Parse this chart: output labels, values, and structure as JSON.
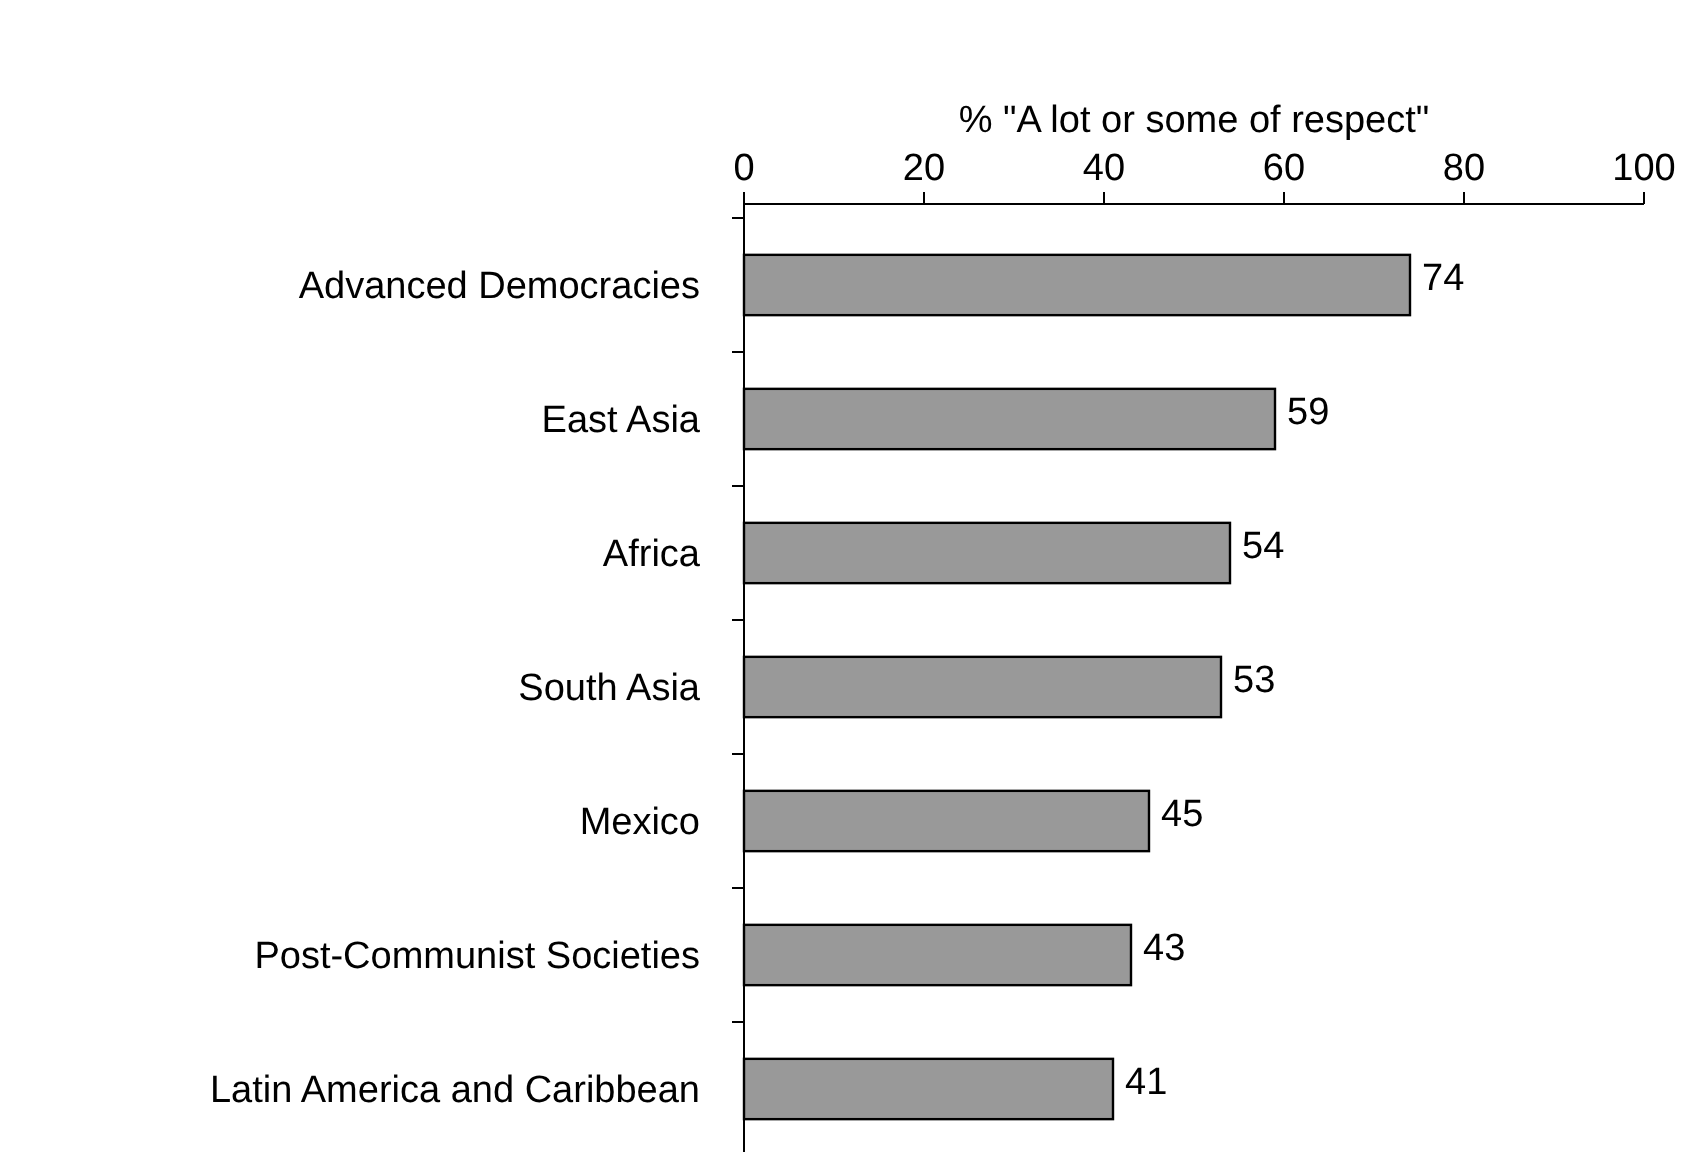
{
  "chart_data": {
    "type": "bar",
    "orientation": "horizontal",
    "xlabel": "% \"A lot or some of respect\"",
    "categories": [
      "Advanced Democracies",
      "East Asia",
      "Africa",
      "South Asia",
      "Mexico",
      "Post-Communist Societies",
      "Latin America and Caribbean"
    ],
    "values": [
      74,
      59,
      54,
      53,
      45,
      43,
      41
    ],
    "color": "#999999",
    "xlim": [
      0,
      100
    ],
    "xticks": [
      0,
      20,
      40,
      60,
      80,
      100
    ],
    "grid": false,
    "data_labels": true
  }
}
